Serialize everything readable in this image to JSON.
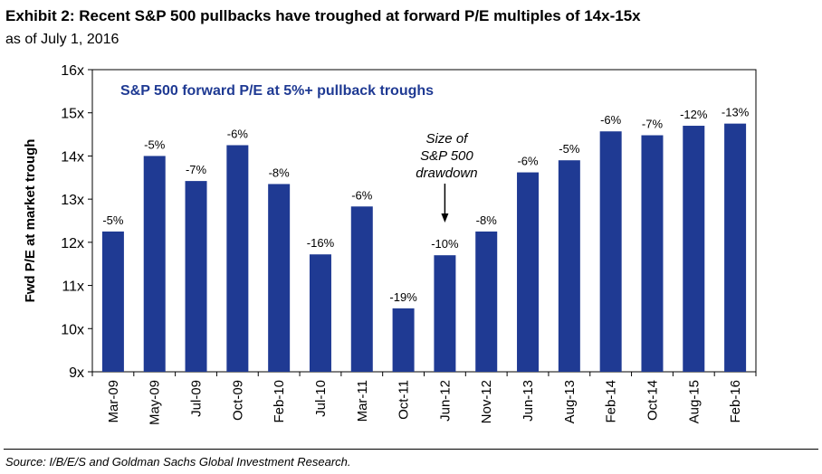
{
  "header": {
    "title": "Exhibit 2: Recent S&P 500 pullbacks have troughed at forward P/E multiples of 14x-15x",
    "subtitle": "as of July 1, 2016"
  },
  "footer": {
    "source": "Source: I/B/E/S and Goldman Sachs Global Investment Research."
  },
  "colors": {
    "bar": "#1F3A93",
    "legend_text": "#1F3A93"
  },
  "chart_data": {
    "type": "bar",
    "title": "S&P 500 forward P/E at 5%+ pullback troughs",
    "ylabel": "Fwd P/E at market trough",
    "xlabel": "",
    "ylim": [
      9,
      16
    ],
    "yticks": [
      "9x",
      "10x",
      "11x",
      "12x",
      "13x",
      "14x",
      "15x",
      "16x"
    ],
    "categories": [
      "Mar-09",
      "May-09",
      "Jul-09",
      "Oct-09",
      "Feb-10",
      "Jul-10",
      "Mar-11",
      "Oct-11",
      "Jun-12",
      "Nov-12",
      "Jun-13",
      "Aug-13",
      "Feb-14",
      "Oct-14",
      "Aug-15",
      "Feb-16"
    ],
    "values": [
      12.25,
      14.0,
      13.42,
      14.25,
      13.35,
      11.72,
      12.83,
      10.47,
      11.7,
      12.25,
      13.62,
      13.9,
      14.57,
      14.48,
      14.7,
      14.75
    ],
    "data_labels": [
      "-5%",
      "-5%",
      "-7%",
      "-6%",
      "-8%",
      "-16%",
      "-6%",
      "-19%",
      "-10%",
      "-8%",
      "-6%",
      "-5%",
      "-6%",
      "-7%",
      "-12%",
      "-13%"
    ],
    "annotation": {
      "lines": [
        "Size of",
        "S&P 500",
        "drawdown"
      ],
      "category": "Jun-12"
    },
    "grid": false,
    "legend": "none"
  }
}
